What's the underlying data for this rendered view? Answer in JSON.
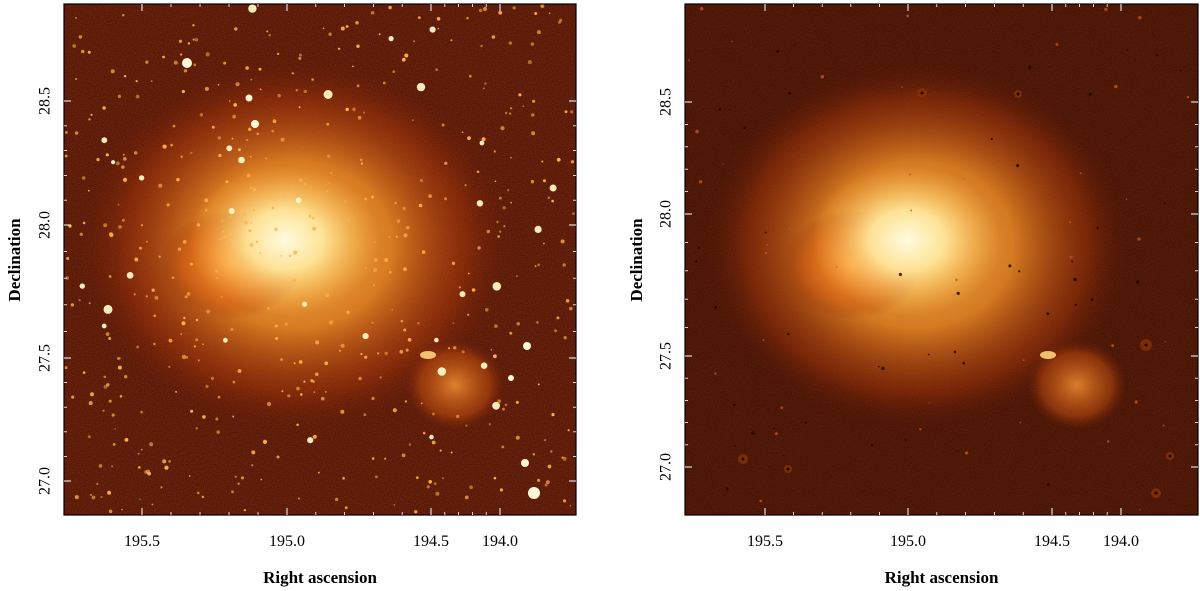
{
  "colors": {
    "background": "#4a0d02",
    "core": "#fff1a8",
    "halo": "#ff8a1e",
    "star": "#ffe7a0",
    "frame": "#000000"
  },
  "panels": [
    {
      "id": "left",
      "variant": "original",
      "xlabel": "Right ascension",
      "ylabel": "Declination",
      "x_ticks": [
        "195.5",
        "195.0",
        "194.5",
        "194.0"
      ],
      "y_ticks": [
        "27.0",
        "27.5",
        "28.0",
        "28.5"
      ]
    },
    {
      "id": "right",
      "variant": "residual",
      "xlabel": "Right ascension",
      "ylabel": "Declination",
      "x_ticks": [
        "195.5",
        "195.0",
        "194.5",
        "194.0"
      ],
      "y_ticks": [
        "27.0",
        "27.5",
        "28.0",
        "28.5"
      ]
    }
  ]
}
